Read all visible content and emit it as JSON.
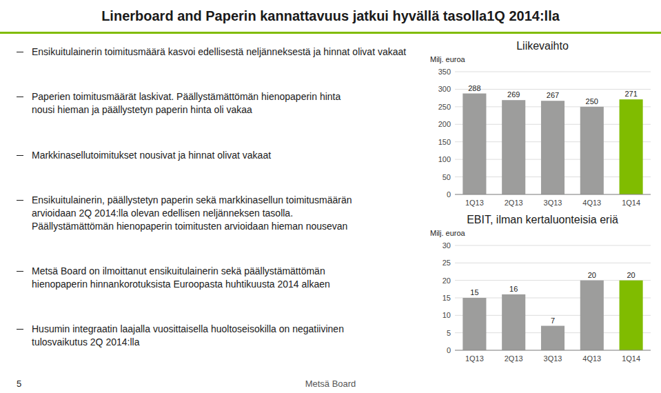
{
  "title": "Linerboard and Paperin kannattavuus jatkui hyvällä tasolla1Q 2014:lla",
  "annotations": [
    "Ensikuitulainerin toimitusmäärä kasvoi edellisestä neljänneksestä ja hinnat olivat vakaat",
    "Paperien toimitusmäärät laskivat. Päällystämättömän hienopaperin hinta\nnousi hieman ja päällystetyn paperin hinta oli vakaa",
    "Markkinasellutoimitukset nousivat ja hinnat olivat vakaat",
    "Ensikuitulainerin, päällystetyn paperin sekä markkinasellun toimitusmäärän\narvioidaan 2Q 2014:lla olevan edellisen neljänneksen tasolla.\nPäällystämättömän hienopaperin toimitusten arvioidaan hieman nousevan",
    "Metsä Board on ilmoittanut ensikuitulainerin sekä päällystämättömän\nhienopaperin hinnankorotuksista Euroopasta huhtikuusta 2014 alkaen",
    "Husumin integraatin laajalla vuosittaisella huoltoseisokilla on negatiivinen\ntulosvaikutus 2Q 2014:lla",
    "5",
    "Metsä Board"
  ],
  "chart_data": [
    {
      "type": "bar",
      "title": "Liikevaihto",
      "ylabel": "Milj. euroa",
      "categories": [
        "1Q13",
        "2Q13",
        "3Q13",
        "4Q13",
        "1Q14"
      ],
      "values": [
        288,
        269,
        267,
        250,
        271
      ],
      "colors": [
        "#9d9d9c",
        "#9d9d9c",
        "#9d9d9c",
        "#9d9d9c",
        "#80bc00"
      ],
      "ylim": [
        0,
        350
      ],
      "yticks": [
        0,
        50,
        100,
        150,
        200,
        250,
        300,
        350
      ],
      "grid": true,
      "data_labels": true
    },
    {
      "type": "bar",
      "title": "EBIT, ilman kertaluonteisia eriä",
      "ylabel": "Milj. euroa",
      "categories": [
        "1Q13",
        "2Q13",
        "3Q13",
        "4Q13",
        "1Q14"
      ],
      "values": [
        15,
        16,
        7,
        20,
        20
      ],
      "colors": [
        "#9d9d9c",
        "#9d9d9c",
        "#9d9d9c",
        "#9d9d9c",
        "#80bc00"
      ],
      "ylim": [
        0,
        30
      ],
      "yticks": [
        0,
        5,
        10,
        15,
        20,
        25,
        30
      ],
      "grid": true,
      "data_labels": true
    }
  ]
}
